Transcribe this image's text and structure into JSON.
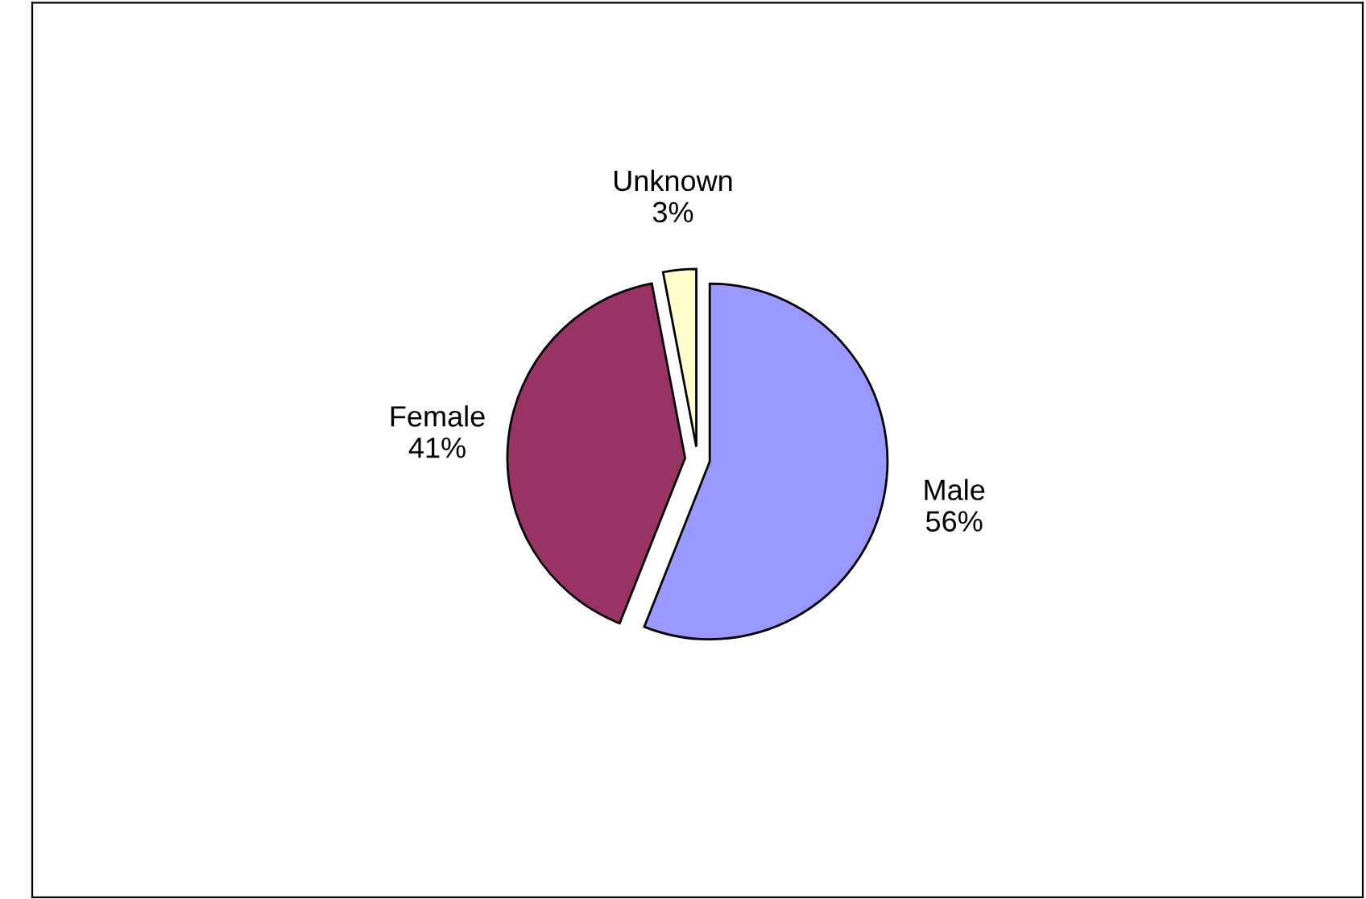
{
  "chart_data": {
    "type": "pie",
    "categories": [
      "Male",
      "Female",
      "Unknown"
    ],
    "values": [
      56,
      41,
      3
    ],
    "value_labels": [
      "56%",
      "41%",
      "3%"
    ],
    "colors": [
      "#9999ff",
      "#993366",
      "#ffffcc"
    ],
    "legend": false
  }
}
